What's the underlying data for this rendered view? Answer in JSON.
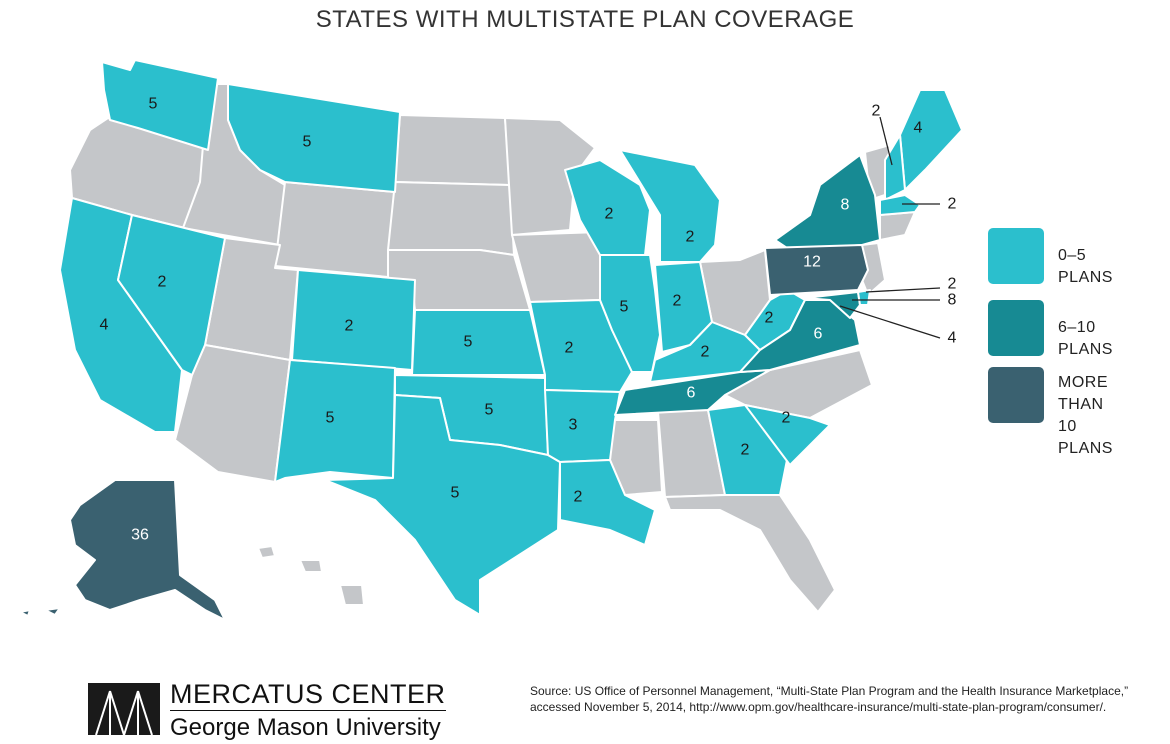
{
  "title": "STATES WITH MULTISTATE PLAN COVERAGE",
  "colors": {
    "none": "#c4c6c9",
    "range_0_5": "#2bbfcd",
    "range_6_10": "#178a93",
    "range_gt_10": "#3a6170",
    "border": "#ffffff"
  },
  "legend": [
    {
      "label": "0–5 PLANS",
      "category": "0-5"
    },
    {
      "label": "6–10 PLANS",
      "category": "6-10"
    },
    {
      "label": "MORE THAN\n10 PLANS",
      "category": ">10"
    }
  ],
  "states": [
    {
      "state": "WA",
      "plans": "5",
      "category": "0-5"
    },
    {
      "state": "MT",
      "plans": "5",
      "category": "0-5"
    },
    {
      "state": "CA",
      "plans": "4",
      "category": "0-5"
    },
    {
      "state": "NV",
      "plans": "2",
      "category": "0-5"
    },
    {
      "state": "CO",
      "plans": "2",
      "category": "0-5"
    },
    {
      "state": "NM",
      "plans": "5",
      "category": "0-5"
    },
    {
      "state": "KS",
      "plans": "5",
      "category": "0-5"
    },
    {
      "state": "OK",
      "plans": "5",
      "category": "0-5"
    },
    {
      "state": "TX",
      "plans": "5",
      "category": "0-5"
    },
    {
      "state": "MO",
      "plans": "2",
      "category": "0-5"
    },
    {
      "state": "AR",
      "plans": "3",
      "category": "0-5"
    },
    {
      "state": "LA",
      "plans": "2",
      "category": "0-5"
    },
    {
      "state": "WI",
      "plans": "2",
      "category": "0-5"
    },
    {
      "state": "IL",
      "plans": "5",
      "category": "0-5"
    },
    {
      "state": "MI",
      "plans": "2",
      "category": "0-5"
    },
    {
      "state": "IN",
      "plans": "2",
      "category": "0-5"
    },
    {
      "state": "KY",
      "plans": "2",
      "category": "0-5"
    },
    {
      "state": "TN",
      "plans": "6",
      "category": "6-10"
    },
    {
      "state": "WV",
      "plans": "2",
      "category": "0-5"
    },
    {
      "state": "VA",
      "plans": "6",
      "category": "6-10"
    },
    {
      "state": "GA",
      "plans": "2",
      "category": "0-5"
    },
    {
      "state": "SC",
      "plans": "2",
      "category": "0-5"
    },
    {
      "state": "NY",
      "plans": "8",
      "category": "6-10"
    },
    {
      "state": "PA",
      "plans": "12",
      "category": ">10"
    },
    {
      "state": "ME",
      "plans": "4",
      "category": "0-5"
    },
    {
      "state": "NH",
      "plans": "2",
      "category": "0-5"
    },
    {
      "state": "MA",
      "plans": "2",
      "category": "0-5"
    },
    {
      "state": "DE",
      "plans": "2",
      "category": "0-5"
    },
    {
      "state": "MD",
      "plans": "8",
      "category": "6-10"
    },
    {
      "state": "DC",
      "plans": "4",
      "category": "0-5"
    },
    {
      "state": "AK",
      "plans": "36",
      "category": ">10"
    }
  ],
  "footer": {
    "org_name": "MERCATUS CENTER",
    "university": "George Mason University",
    "source": "Source: US Office of Personnel Management, “Multi-State Plan Program and the Health Insurance Marketplace,” accessed November 5, 2014, http://www.opm.gov/healthcare-insurance/multi-state-plan-program/consumer/."
  }
}
